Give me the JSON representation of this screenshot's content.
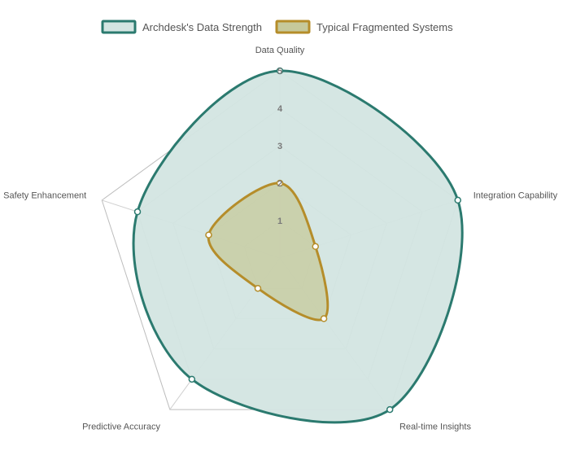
{
  "chart_data": {
    "type": "radar",
    "axes": [
      "Data Quality",
      "Integration Capability",
      "Real-time Insights",
      "Predictive Accuracy",
      "Safety Enhancement"
    ],
    "scale": {
      "min": 0,
      "max": 5,
      "ticks": [
        "1",
        "2",
        "3",
        "4",
        "5"
      ]
    },
    "series": [
      {
        "name": "Archdesk's Data Strength",
        "values": [
          5,
          5,
          5,
          4,
          4
        ],
        "stroke": "#2b7a6f",
        "fill": "#d3e5e2"
      },
      {
        "name": "Typical Fragmented Systems",
        "values": [
          2,
          1,
          2,
          1,
          2
        ],
        "stroke": "#b58d2a",
        "fill": "#c6c99b"
      }
    ],
    "legend": "top",
    "grid": true
  }
}
